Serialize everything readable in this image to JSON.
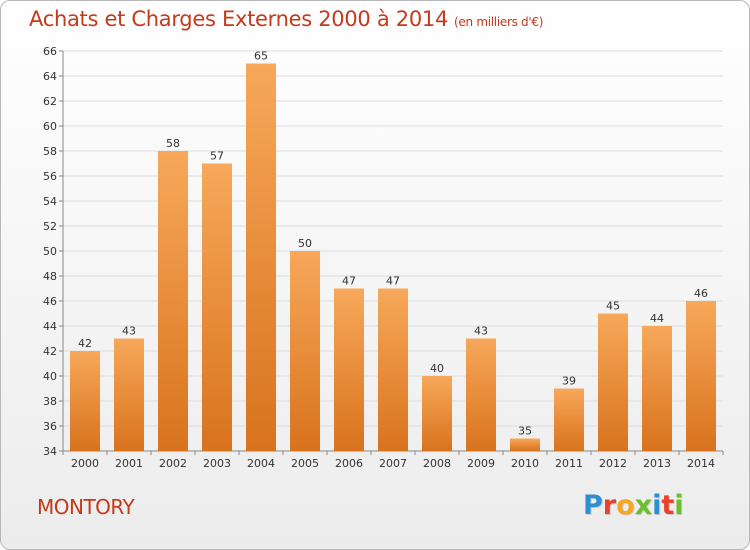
{
  "header": {
    "title": "Achats et Charges Externes 2000 à 2014",
    "subtitle": "(en milliers d'€)"
  },
  "footer": {
    "city": "MONTORY",
    "logo_text": "Proxiti",
    "logo_colors": [
      "#2b8fd6",
      "#e8432a",
      "#f5a623",
      "#6cbf2c",
      "#2b8fd6",
      "#e8432a",
      "#6cbf2c"
    ]
  },
  "colors": {
    "bar_top": "#f7a85a",
    "bar_bottom": "#d8731e",
    "grid": "#dddddd",
    "axis": "#888888"
  },
  "chart_data": {
    "type": "bar",
    "title": "Achats et Charges Externes 2000 à 2014",
    "subtitle": "(en milliers d'€)",
    "xlabel": "",
    "ylabel": "",
    "categories": [
      "2000",
      "2001",
      "2002",
      "2003",
      "2004",
      "2005",
      "2006",
      "2007",
      "2008",
      "2009",
      "2010",
      "2011",
      "2012",
      "2013",
      "2014"
    ],
    "values": [
      42,
      43,
      58,
      57,
      65,
      50,
      47,
      47,
      40,
      43,
      35,
      39,
      45,
      44,
      46
    ],
    "ylim": [
      34,
      66
    ],
    "yticks": [
      34,
      36,
      38,
      40,
      42,
      44,
      46,
      48,
      50,
      52,
      54,
      56,
      58,
      60,
      62,
      64,
      66
    ],
    "grid": true,
    "legend": "none"
  }
}
